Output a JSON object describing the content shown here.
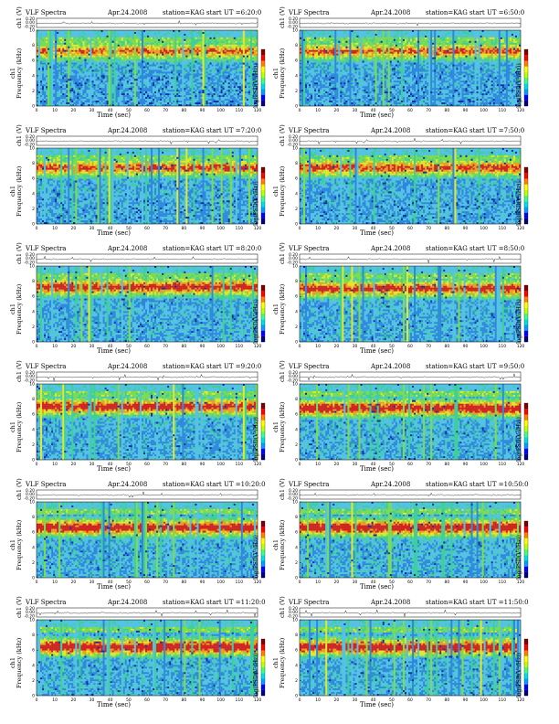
{
  "figure": {
    "instrument": "VLF Spectra",
    "date": "Apr.24.2008",
    "station": "station=KAG",
    "ch_label": "ch1 (V)",
    "freq_label": "Frequency (kHz)",
    "time_label": "Time (sec)",
    "colorbar_label": "log(PSD(V²/Hz))",
    "side_label": "ch1",
    "ch1_ticks": [
      "0.20",
      "0.00",
      "-0.20"
    ],
    "x_ticks": [
      "0",
      "10",
      "20",
      "30",
      "40",
      "50",
      "60",
      "70",
      "80",
      "90",
      "100",
      "110",
      "120"
    ],
    "y_ticks": [
      "0",
      "2",
      "4",
      "6",
      "8",
      "10"
    ]
  },
  "colors": {
    "spectrogram": [
      "#0a2aa8",
      "#2f86e0",
      "#55c2e6",
      "#3ecf9a",
      "#7edc4e",
      "#e8e82a",
      "#f59b1c",
      "#d81c1c"
    ],
    "colorbar": [
      "#000080",
      "#0000ff",
      "#00a0ff",
      "#00e0e0",
      "#40ff80",
      "#c0ff00",
      "#ffff00",
      "#ff8000",
      "#ff0000",
      "#800000"
    ]
  },
  "panels": [
    {
      "start": "start UT =6:20:0"
    },
    {
      "start": "start UT =6:50:0"
    },
    {
      "start": "start UT =7:20:0"
    },
    {
      "start": "start UT =7:50:0"
    },
    {
      "start": "start UT =8:20:0"
    },
    {
      "start": "start UT =8:50:0"
    },
    {
      "start": "start UT =9:20:0"
    },
    {
      "start": "start UT =9:50:0"
    },
    {
      "start": "start UT =10:20:0"
    },
    {
      "start": "start UT =10:50:0"
    },
    {
      "start": "start UT =11:20:0"
    },
    {
      "start": "start UT =11:50:0"
    }
  ],
  "chart_data": {
    "type": "heatmap",
    "title": "VLF Spectra",
    "xlabel": "Time (sec)",
    "ylabel": "Frequency (kHz)",
    "xlim": [
      0,
      120
    ],
    "ylim": [
      0,
      10
    ],
    "colorbar_label": "log(PSD(V²/Hz))",
    "panels": [
      {
        "start": "6:20:0",
        "band_center_khz": 7.2,
        "band_intensity": 0.55
      },
      {
        "start": "6:50:0",
        "band_center_khz": 7.2,
        "band_intensity": 0.6
      },
      {
        "start": "7:20:0",
        "band_center_khz": 7.4,
        "band_intensity": 0.7
      },
      {
        "start": "7:50:0",
        "band_center_khz": 7.4,
        "band_intensity": 0.7
      },
      {
        "start": "8:20:0",
        "band_center_khz": 7.2,
        "band_intensity": 0.8
      },
      {
        "start": "8:50:0",
        "band_center_khz": 7.0,
        "band_intensity": 0.8
      },
      {
        "start": "9:20:0",
        "band_center_khz": 7.0,
        "band_intensity": 0.85
      },
      {
        "start": "9:50:0",
        "band_center_khz": 6.8,
        "band_intensity": 0.9
      },
      {
        "start": "10:20:0",
        "band_center_khz": 6.6,
        "band_intensity": 0.9
      },
      {
        "start": "10:50:0",
        "band_center_khz": 6.6,
        "band_intensity": 0.95
      },
      {
        "start": "11:20:0",
        "band_center_khz": 6.4,
        "band_intensity": 0.95
      },
      {
        "start": "11:50:0",
        "band_center_khz": 6.4,
        "band_intensity": 0.95
      }
    ]
  }
}
